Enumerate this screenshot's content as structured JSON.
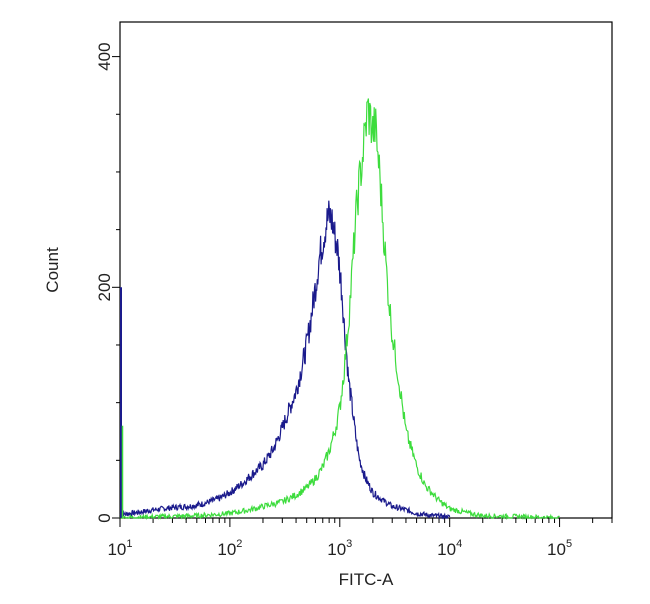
{
  "chart_data": {
    "type": "line",
    "subtype": "flow-cytometry-histogram",
    "xlabel": "FITC-A",
    "ylabel": "Count",
    "x_scale": "log",
    "xlim": [
      10,
      300000
    ],
    "ylim": [
      0,
      430
    ],
    "x_ticks": [
      {
        "base": "10",
        "exp": "1",
        "value": 10
      },
      {
        "base": "10",
        "exp": "2",
        "value": 100
      },
      {
        "base": "10",
        "exp": "3",
        "value": 1000
      },
      {
        "base": "10",
        "exp": "4",
        "value": 10000
      },
      {
        "base": "10",
        "exp": "5",
        "value": 100000
      }
    ],
    "y_ticks": [
      {
        "label": "0",
        "value": 0
      },
      {
        "label": "200",
        "value": 200
      },
      {
        "label": "400",
        "value": 400
      }
    ],
    "grid": false,
    "series": [
      {
        "color": "#1a1a8c",
        "x": [
          10,
          15,
          20,
          30,
          40,
          50,
          60,
          80,
          100,
          130,
          160,
          200,
          250,
          300,
          350,
          400,
          450,
          500,
          550,
          600,
          650,
          700,
          750,
          800,
          850,
          900,
          950,
          1000,
          1050,
          1100,
          1150,
          1200,
          1300,
          1400,
          1500,
          1700,
          2000,
          2500,
          3000,
          4000,
          5000,
          7000,
          10000
        ],
        "y": [
          3,
          5,
          7,
          9,
          10,
          11,
          13,
          17,
          22,
          30,
          38,
          46,
          60,
          78,
          95,
          110,
          130,
          150,
          175,
          200,
          225,
          240,
          255,
          262,
          258,
          245,
          235,
          215,
          195,
          165,
          145,
          120,
          95,
          70,
          52,
          35,
          22,
          15,
          10,
          7,
          4,
          2,
          1
        ]
      },
      {
        "color": "#3ddc3d",
        "x": [
          10,
          20,
          50,
          100,
          150,
          200,
          300,
          400,
          500,
          600,
          700,
          800,
          900,
          1000,
          1100,
          1200,
          1300,
          1400,
          1500,
          1600,
          1700,
          1800,
          1900,
          2000,
          2100,
          2200,
          2300,
          2400,
          2500,
          2700,
          3000,
          3500,
          4000,
          5000,
          6000,
          8000,
          10000,
          15000,
          20000,
          50000,
          100000
        ],
        "y": [
          0,
          1,
          2,
          4,
          7,
          10,
          14,
          20,
          26,
          34,
          44,
          58,
          75,
          95,
          130,
          170,
          215,
          260,
          290,
          310,
          335,
          355,
          345,
          335,
          340,
          320,
          300,
          275,
          250,
          205,
          160,
          115,
          75,
          45,
          28,
          15,
          8,
          4,
          2,
          1,
          0
        ]
      }
    ]
  }
}
